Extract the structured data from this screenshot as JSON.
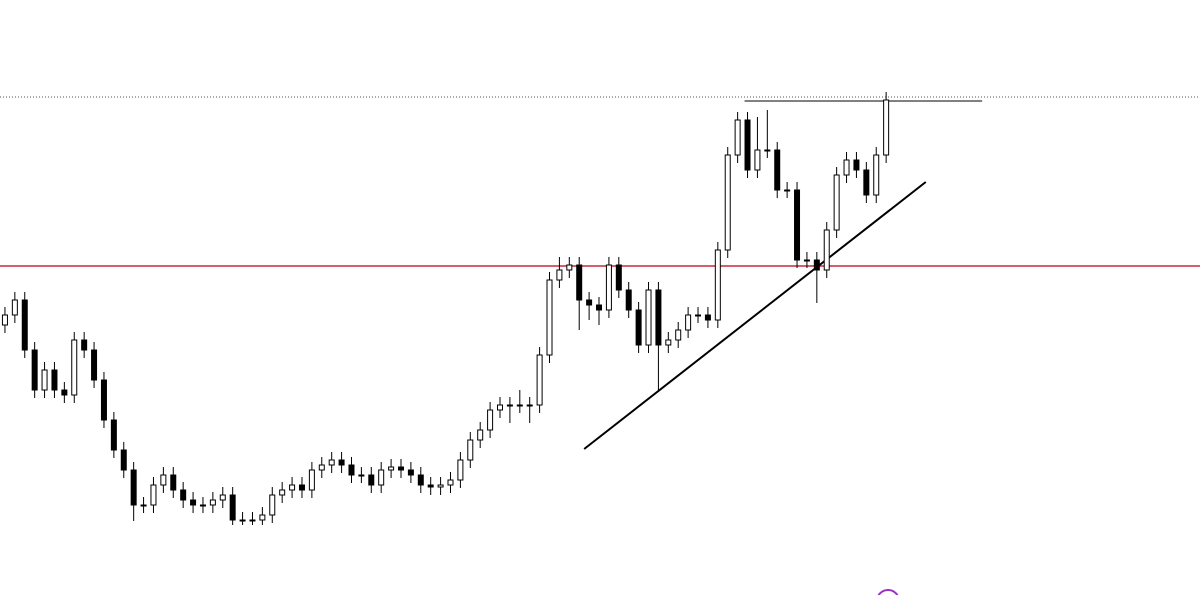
{
  "chart_data": {
    "type": "candlestick",
    "ylim": [
      0,
      595
    ],
    "xlim": [
      -0.5,
      120.7
    ],
    "up_color": "#ffffff",
    "down_color": "#000000",
    "open": [
      270,
      280,
      295,
      245,
      205,
      225,
      205,
      200,
      255,
      245,
      215,
      175,
      145,
      125,
      90,
      90,
      110,
      120,
      105,
      95,
      90,
      90,
      95,
      100,
      75,
      75,
      75,
      80,
      100,
      105,
      110,
      105,
      125,
      130,
      135,
      130,
      120,
      120,
      110,
      125,
      128,
      125,
      120,
      110,
      108,
      110,
      115,
      135,
      155,
      165,
      185,
      190,
      190,
      190,
      190,
      240,
      315,
      325,
      330,
      295,
      290,
      285,
      330,
      305,
      285,
      250,
      305,
      250,
      255,
      265,
      280,
      280,
      275,
      345,
      440,
      475,
      425,
      445,
      445,
      405,
      405,
      335,
      335,
      325,
      365,
      420,
      435,
      425,
      400,
      440
    ],
    "high": [
      288,
      303,
      303,
      253,
      233,
      233,
      213,
      263,
      263,
      253,
      223,
      183,
      153,
      133,
      98,
      118,
      128,
      128,
      113,
      103,
      98,
      103,
      108,
      108,
      83,
      83,
      88,
      108,
      113,
      118,
      118,
      133,
      138,
      143,
      143,
      138,
      128,
      128,
      133,
      136,
      136,
      133,
      128,
      118,
      118,
      123,
      143,
      163,
      173,
      193,
      198,
      198,
      205,
      198,
      248,
      323,
      338,
      338,
      338,
      303,
      298,
      338,
      338,
      313,
      293,
      313,
      313,
      263,
      273,
      288,
      288,
      288,
      353,
      448,
      483,
      483,
      478,
      485,
      453,
      413,
      413,
      343,
      343,
      373,
      428,
      443,
      443,
      433,
      448,
      503
    ],
    "low": [
      262,
      272,
      237,
      197,
      197,
      197,
      192,
      192,
      237,
      207,
      167,
      137,
      117,
      74,
      82,
      82,
      102,
      97,
      87,
      82,
      82,
      82,
      87,
      70,
      70,
      70,
      70,
      72,
      92,
      97,
      97,
      97,
      117,
      122,
      122,
      112,
      112,
      102,
      102,
      117,
      117,
      112,
      102,
      100,
      100,
      102,
      107,
      127,
      147,
      157,
      177,
      172,
      182,
      172,
      182,
      232,
      307,
      317,
      265,
      275,
      270,
      277,
      297,
      277,
      242,
      242,
      205,
      242,
      247,
      257,
      272,
      267,
      267,
      337,
      432,
      417,
      417,
      437,
      397,
      397,
      327,
      327,
      292,
      317,
      357,
      412,
      417,
      392,
      392,
      432
    ],
    "close": [
      280,
      295,
      245,
      205,
      225,
      205,
      200,
      255,
      245,
      215,
      175,
      145,
      125,
      90,
      90,
      110,
      120,
      105,
      95,
      90,
      90,
      95,
      100,
      75,
      75,
      75,
      80,
      100,
      105,
      110,
      105,
      125,
      130,
      135,
      130,
      120,
      120,
      110,
      125,
      128,
      125,
      120,
      110,
      108,
      110,
      115,
      135,
      155,
      165,
      185,
      190,
      190,
      190,
      190,
      240,
      315,
      325,
      330,
      295,
      290,
      285,
      330,
      305,
      285,
      250,
      305,
      250,
      255,
      265,
      280,
      280,
      275,
      345,
      440,
      475,
      425,
      445,
      445,
      405,
      405,
      335,
      335,
      325,
      365,
      420,
      435,
      425,
      400,
      440,
      495
    ],
    "hlines": [
      {
        "value": 329,
        "color": "#c8283c",
        "style": "solid"
      },
      {
        "value": 498,
        "color": "#555555",
        "style": "dotted"
      }
    ],
    "segments": [
      {
        "x": [
          74.7,
          98.7
        ],
        "values": [
          494,
          494
        ],
        "color": "#000000",
        "width": 1
      },
      {
        "x": [
          58.5,
          93
        ],
        "values": [
          146,
          413
        ],
        "color": "#000000",
        "width": 2
      }
    ]
  }
}
